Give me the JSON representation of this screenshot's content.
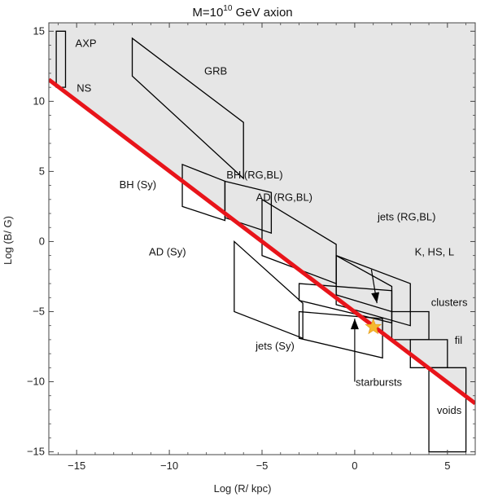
{
  "chart_data": {
    "type": "diagram-plot",
    "title": "M=10",
    "title_sup": "10",
    "title_suffix": " GeV  axion",
    "xlabel": "Log (R/ kpc)",
    "ylabel": "Log (B/ G)",
    "xlim": [
      -16.5,
      6.5
    ],
    "ylim": [
      -15.2,
      15.6
    ],
    "xticks": [
      -15,
      -10,
      -5,
      0,
      5
    ],
    "yticks": [
      -15,
      -10,
      -5,
      0,
      5,
      10,
      15
    ],
    "colors": {
      "shaded_region": "#e6e6e6",
      "bound_line": "#e8141a",
      "star": "#f5b82e",
      "outline": "#000000"
    },
    "bound_line": {
      "x": [
        -16.5,
        6.5
      ],
      "y": [
        11.55,
        -11.55
      ]
    },
    "star_point": {
      "x": 1.0,
      "y": -6.1
    },
    "regions": [
      {
        "name": "AXP",
        "label_pos": [
          -14.5,
          13.9
        ],
        "polygon": [
          [
            -16.1,
            15
          ],
          [
            -15.6,
            15
          ],
          [
            -15.6,
            11
          ],
          [
            -16.1,
            11
          ]
        ]
      },
      {
        "name": "NS",
        "label_pos": [
          -14.6,
          10.7
        ],
        "polygon": []
      },
      {
        "name": "GRB",
        "label_pos": [
          -7.5,
          11.9
        ],
        "polygon": [
          [
            -12,
            14.5
          ],
          [
            -12,
            11.8
          ],
          [
            -6,
            4.5
          ],
          [
            -6,
            8.5
          ]
        ]
      },
      {
        "name": "BH (Sy)",
        "label_pos": [
          -11.7,
          3.8
        ],
        "polygon": [
          [
            -9.3,
            5.5
          ],
          [
            -7,
            4.3
          ],
          [
            -7,
            1.5
          ],
          [
            -9.3,
            2.5
          ]
        ]
      },
      {
        "name": "BH (RG,BL)",
        "label_pos": [
          -5.4,
          4.5
        ],
        "polygon": [
          [
            -7,
            4.3
          ],
          [
            -4.5,
            3.5
          ],
          [
            -4.5,
            0.6
          ],
          [
            -7,
            1.7
          ]
        ]
      },
      {
        "name": "AD (RG,BL)",
        "label_pos": [
          -3.8,
          2.9
        ],
        "polygon": [
          [
            -5,
            3
          ],
          [
            -1,
            -0.2
          ],
          [
            -1,
            -3
          ],
          [
            -5,
            -1
          ]
        ]
      },
      {
        "name": "AD (Sy)",
        "label_pos": [
          -10.1,
          -1.0
        ],
        "polygon": [
          [
            -6.5,
            0
          ],
          [
            -2.8,
            -4.4
          ],
          [
            -2.8,
            -6.9
          ],
          [
            -6.5,
            -5
          ]
        ]
      },
      {
        "name": "jets (RG,BL)",
        "label_pos": [
          2.8,
          1.5
        ],
        "polygon": [
          [
            -1,
            -1
          ],
          [
            2,
            -3.2
          ],
          [
            2,
            -5
          ],
          [
            -1,
            -3.8
          ]
        ]
      },
      {
        "name": "K, HS, L",
        "label_pos": [
          4.3,
          -1.0
        ],
        "polygon": [
          [
            -1,
            -1
          ],
          [
            3,
            -3
          ],
          [
            3,
            -6
          ],
          [
            -1,
            -4.5
          ]
        ]
      },
      {
        "name": "jets (Sy)",
        "label_pos": [
          -4.3,
          -7.7
        ],
        "polygon": [
          [
            -3,
            -5
          ],
          [
            1.5,
            -5.5
          ],
          [
            1.5,
            -8.3
          ],
          [
            -3,
            -6.9
          ]
        ]
      },
      {
        "name": "starbursts",
        "label_pos": [
          1.3,
          -10.3
        ],
        "polygon": [
          [
            -3,
            -3
          ],
          [
            2,
            -3.5
          ],
          [
            2,
            -5.8
          ],
          [
            -3,
            -4.2
          ]
        ]
      },
      {
        "name": "clusters",
        "label_pos": [
          5.1,
          -4.6
        ],
        "polygon": [
          [
            2,
            -5
          ],
          [
            4,
            -5
          ],
          [
            4,
            -7
          ],
          [
            2,
            -7
          ]
        ]
      },
      {
        "name": "fil",
        "label_pos": [
          5.6,
          -7.3
        ],
        "polygon": [
          [
            3,
            -7
          ],
          [
            5,
            -7
          ],
          [
            5,
            -9
          ],
          [
            3,
            -9
          ]
        ]
      },
      {
        "name": "voids",
        "label_pos": [
          5.1,
          -12.3
        ],
        "polygon": [
          [
            4,
            -9
          ],
          [
            6,
            -9
          ],
          [
            6,
            -15
          ],
          [
            4,
            -15
          ]
        ]
      }
    ],
    "arrows": [
      {
        "from": [
          1.2,
          -4.4
        ],
        "to": [
          0.9,
          -2.0
        ],
        "reverse": true
      },
      {
        "from": [
          0.0,
          -10.0
        ],
        "to": [
          0.0,
          -5.5
        ]
      }
    ]
  }
}
